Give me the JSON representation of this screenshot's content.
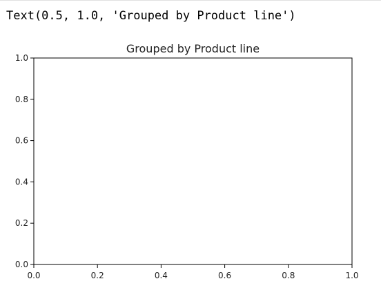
{
  "output": {
    "repr_text": "Text(0.5, 1.0, 'Grouped by Product line')"
  },
  "chart_data": {
    "type": "line",
    "title": "Grouped by Product line",
    "xlabel": "",
    "ylabel": "",
    "xlim": [
      0.0,
      1.0
    ],
    "ylim": [
      0.0,
      1.0
    ],
    "xticks": [
      0.0,
      0.2,
      0.4,
      0.6,
      0.8,
      1.0
    ],
    "yticks": [
      0.0,
      0.2,
      0.4,
      0.6,
      0.8,
      1.0
    ],
    "xtick_labels": [
      "0.0",
      "0.2",
      "0.4",
      "0.6",
      "0.8",
      "1.0"
    ],
    "ytick_labels": [
      "0.0",
      "0.2",
      "0.4",
      "0.6",
      "0.8",
      "1.0"
    ],
    "series": [],
    "grid": false,
    "colors": {
      "axes": "#000000",
      "text": "#222222",
      "background": "#ffffff"
    }
  }
}
